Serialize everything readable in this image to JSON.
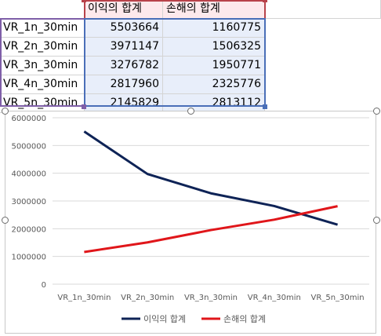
{
  "table": {
    "headers": [
      "이익의 합계",
      "손해의 합계"
    ],
    "rows": [
      {
        "label": "VR_1n_30min",
        "profit": "5503664",
        "loss": "1160775"
      },
      {
        "label": "VR_2n_30min",
        "profit": "3971147",
        "loss": "1506325"
      },
      {
        "label": "VR_3n_30min",
        "profit": "3276782",
        "loss": "1950771"
      },
      {
        "label": "VR_4n_30min",
        "profit": "2817960",
        "loss": "2325776"
      },
      {
        "label": "VR_5n_30min",
        "profit": "2145829",
        "loss": "2813112"
      }
    ]
  },
  "chart_data": {
    "type": "line",
    "categories": [
      "VR_1n_30min",
      "VR_2n_30min",
      "VR_3n_30min",
      "VR_4n_30min",
      "VR_5n_30min"
    ],
    "series": [
      {
        "name": "이익의 합계",
        "color": "#0e2356",
        "values": [
          5503664,
          3971147,
          3276782,
          2817960,
          2145829
        ]
      },
      {
        "name": "손해의 합계",
        "color": "#e0161a",
        "values": [
          1160775,
          1506325,
          1950771,
          2325776,
          2813112
        ]
      }
    ],
    "ylim": [
      0,
      6000000
    ],
    "yticks": [
      "0",
      "1000000",
      "2000000",
      "3000000",
      "4000000",
      "5000000",
      "6000000"
    ],
    "grid": true,
    "legend": "bottom"
  }
}
